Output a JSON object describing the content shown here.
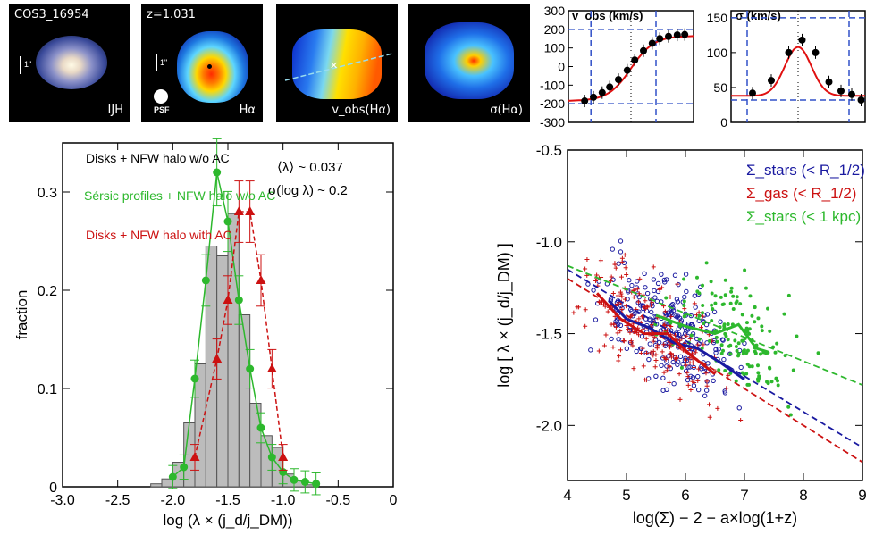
{
  "thumbnails": {
    "t1": {
      "label_top": "COS3_16954",
      "label_bottom": "IJH",
      "scale": "1\""
    },
    "t2": {
      "label_top": "z=1.031",
      "label_bottom": "Hα",
      "scale": "1\"",
      "psf": "PSF"
    },
    "t3": {
      "label_bottom": "v_obs(Hα)"
    },
    "t4": {
      "label_bottom": "σ(Hα)"
    }
  },
  "chart_data": [
    {
      "type": "line",
      "title": "v_obs (km/s)",
      "ylim": [
        -300,
        300
      ],
      "yticks": [
        -300,
        -200,
        -100,
        0,
        100,
        200,
        300
      ],
      "series": [
        {
          "name": "velocity",
          "points": [
            [
              0.13,
              -185
            ],
            [
              0.2,
              -165
            ],
            [
              0.27,
              -140
            ],
            [
              0.33,
              -110
            ],
            [
              0.4,
              -70
            ],
            [
              0.47,
              -20
            ],
            [
              0.53,
              35
            ],
            [
              0.6,
              85
            ],
            [
              0.67,
              125
            ],
            [
              0.73,
              150
            ],
            [
              0.8,
              162
            ],
            [
              0.87,
              170
            ],
            [
              0.93,
              172
            ]
          ]
        }
      ],
      "hlines": [
        200,
        -200
      ],
      "vlines": [
        0.18,
        0.7
      ]
    },
    {
      "type": "line",
      "title": "σ (km/s)",
      "ylim": [
        0,
        160
      ],
      "yticks": [
        0,
        50,
        100,
        150
      ],
      "series": [
        {
          "name": "dispersion",
          "points": [
            [
              0.16,
              42
            ],
            [
              0.3,
              60
            ],
            [
              0.43,
              100
            ],
            [
              0.53,
              118
            ],
            [
              0.63,
              100
            ],
            [
              0.73,
              58
            ],
            [
              0.82,
              45
            ],
            [
              0.9,
              40
            ],
            [
              0.97,
              32
            ]
          ]
        }
      ],
      "hlines": [
        150,
        32
      ],
      "vlines": [
        0.12,
        0.88
      ]
    },
    {
      "type": "bar",
      "xlabel": "log (λ × (j_d/j_DM))",
      "ylabel": "fraction",
      "xlim": [
        -3.0,
        0
      ],
      "ylim": [
        0,
        0.35
      ],
      "xticks": [
        "-3.0",
        "-2.5",
        "-2.0",
        "-1.5",
        "-1.0",
        "-0.5",
        "0"
      ],
      "yticks": [
        "0",
        "0.1",
        "0.2",
        "0.3"
      ],
      "bins_left": [
        -2.2,
        -2.1,
        -2.0,
        -1.9,
        -1.8,
        -1.7,
        -1.6,
        -1.5,
        -1.4,
        -1.3,
        -1.2,
        -1.1,
        -1.0,
        -0.9,
        -0.8
      ],
      "values": [
        0.003,
        0.008,
        0.025,
        0.065,
        0.125,
        0.245,
        0.235,
        0.278,
        0.175,
        0.085,
        0.052,
        0.04,
        0.013,
        0.006,
        0.002
      ],
      "series": [
        {
          "name": "Sérsic profiles + NFW halo w/o AC",
          "color": "#2db82d",
          "x": [
            -2.0,
            -1.9,
            -1.8,
            -1.7,
            -1.6,
            -1.5,
            -1.4,
            -1.3,
            -1.2,
            -1.1,
            -1.0,
            -0.9,
            -0.8,
            -0.7
          ],
          "y": [
            0.01,
            0.02,
            0.11,
            0.21,
            0.32,
            0.27,
            0.19,
            0.12,
            0.06,
            0.03,
            0.015,
            0.007,
            0.005,
            0.003
          ]
        },
        {
          "name": "Disks + NFW halo with AC",
          "color": "#cc1111",
          "x": [
            -1.8,
            -1.6,
            -1.5,
            -1.4,
            -1.3,
            -1.2,
            -1.1,
            -1.0
          ],
          "y": [
            0.03,
            0.13,
            0.19,
            0.28,
            0.28,
            0.21,
            0.12,
            0.03
          ]
        }
      ],
      "annotations": {
        "legend1": "Disks + NFW halo w/o  AC",
        "legend2": "Sérsic profiles + NFW halo w/o AC",
        "legend3": "Disks + NFW halo with AC",
        "mean": "⟨λ⟩ ~ 0.037",
        "sigma": "σ(log λ) ~ 0.2"
      }
    },
    {
      "type": "scatter",
      "xlabel": "log(Σ) − 2 − a×log(1+z)",
      "ylabel": "log [ λ × (j_d/j_DM) ]",
      "xlim": [
        4,
        9
      ],
      "ylim": [
        -2.3,
        -0.5
      ],
      "xticks": [
        "4",
        "5",
        "6",
        "7",
        "8",
        "9"
      ],
      "yticks": [
        "-0.5",
        "-1.0",
        "-1.5",
        "-2.0"
      ],
      "legend": [
        {
          "label": "Σ_stars (< R_1/2)",
          "color": "#1a1aa0"
        },
        {
          "label": "Σ_gas (< R_1/2)",
          "color": "#cc1111"
        },
        {
          "label": "Σ_stars (< 1 kpc)",
          "color": "#2db82d"
        }
      ],
      "fit_lines": [
        {
          "name": "Σ_stars (< R_1/2)",
          "color": "#1a1aa0",
          "x": [
            4,
            9
          ],
          "y": [
            -1.15,
            -2.12
          ]
        },
        {
          "name": "Σ_gas (< R_1/2)",
          "color": "#cc1111",
          "x": [
            4,
            9
          ],
          "y": [
            -1.2,
            -2.2
          ]
        },
        {
          "name": "Σ_stars (< 1 kpc)",
          "color": "#2db82d",
          "x": [
            4,
            9
          ],
          "y": [
            -1.13,
            -1.78
          ]
        }
      ],
      "median_lines": [
        {
          "name": "Σ_stars (< R_1/2)",
          "color": "#1a1aa0",
          "x": [
            4.7,
            5.0,
            5.4,
            5.8,
            6.2,
            6.6,
            7.0
          ],
          "y": [
            -1.32,
            -1.42,
            -1.47,
            -1.55,
            -1.58,
            -1.66,
            -1.75
          ]
        },
        {
          "name": "Σ_gas (< R_1/2)",
          "color": "#cc1111",
          "x": [
            4.5,
            4.9,
            5.3,
            5.7,
            6.1,
            6.5
          ],
          "y": [
            -1.28,
            -1.42,
            -1.5,
            -1.5,
            -1.62,
            -1.72
          ]
        },
        {
          "name": "Σ_stars (< 1 kpc)",
          "color": "#2db82d",
          "x": [
            5.5,
            6.0,
            6.5,
            6.9,
            7.2,
            7.4
          ],
          "y": [
            -1.4,
            -1.46,
            -1.5,
            -1.45,
            -1.58,
            -1.6
          ]
        }
      ]
    }
  ]
}
